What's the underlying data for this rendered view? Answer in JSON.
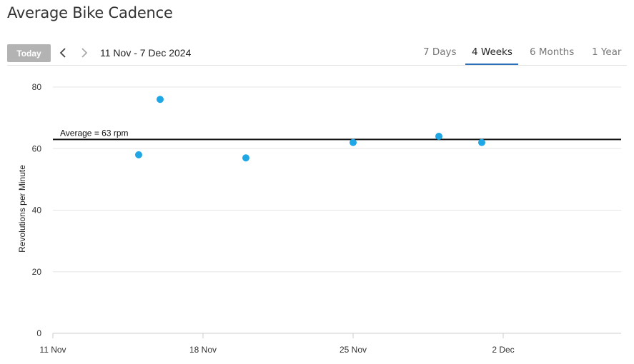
{
  "page": {
    "title": "Average Bike Cadence"
  },
  "toolbar": {
    "today_label": "Today",
    "prev_icon": "chevron-left-icon",
    "next_icon": "chevron-right-icon",
    "date_range": "11 Nov - 7 Dec 2024",
    "tabs": [
      {
        "label": "7 Days",
        "active": false
      },
      {
        "label": "4 Weeks",
        "active": true
      },
      {
        "label": "6 Months",
        "active": false
      },
      {
        "label": "1 Year",
        "active": false
      }
    ],
    "accent_color": "#2a6fb7"
  },
  "chart_data": {
    "type": "scatter",
    "title": "",
    "ylabel": "Revolutions per Minute",
    "xlabel": "",
    "ylim": [
      0,
      80
    ],
    "yticks": [
      0,
      20,
      40,
      60,
      80
    ],
    "x_range": [
      "2024-11-11",
      "2024-12-07"
    ],
    "xticks": [
      {
        "date": "2024-11-11",
        "label": "11 Nov"
      },
      {
        "date": "2024-11-18",
        "label": "18 Nov"
      },
      {
        "date": "2024-11-25",
        "label": "25 Nov"
      },
      {
        "date": "2024-12-02",
        "label": "2 Dec"
      }
    ],
    "grid": true,
    "point_color": "#1ea7e4",
    "points": [
      {
        "x": "2024-11-15",
        "y": 58
      },
      {
        "x": "2024-11-16",
        "y": 76
      },
      {
        "x": "2024-11-20",
        "y": 57
      },
      {
        "x": "2024-11-25",
        "y": 62
      },
      {
        "x": "2024-11-29",
        "y": 64
      },
      {
        "x": "2024-12-01",
        "y": 62
      }
    ],
    "average": {
      "value": 63,
      "label": "Average = 63 rpm"
    }
  }
}
